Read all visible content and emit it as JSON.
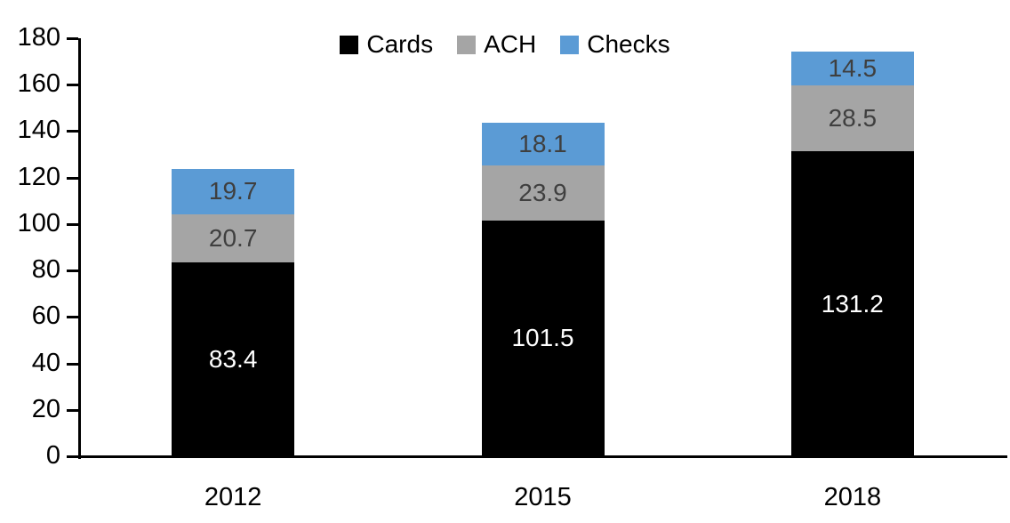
{
  "chart_data": {
    "type": "bar",
    "stacked": true,
    "title": "",
    "categories": [
      "2012",
      "2015",
      "2018"
    ],
    "series": [
      {
        "name": "Cards",
        "color": "#000000",
        "label_color": "#FFFFFF",
        "values": [
          83.4,
          101.5,
          131.2
        ]
      },
      {
        "name": "ACH",
        "color": "#A5A5A5",
        "label_color": "#3F3F3F",
        "values": [
          20.7,
          23.9,
          28.5
        ]
      },
      {
        "name": "Checks",
        "color": "#5B9BD5",
        "label_color": "#3F3F3F",
        "values": [
          19.7,
          18.1,
          14.5
        ]
      }
    ],
    "totals": [
      123.8,
      143.5,
      174.2
    ],
    "ylim": [
      0,
      180
    ],
    "ytick_step": 20,
    "ytick_labels": [
      "0",
      "20",
      "40",
      "60",
      "80",
      "100",
      "120",
      "140",
      "160",
      "180"
    ],
    "legend": {
      "position": "top",
      "entries": [
        "Cards",
        "ACH",
        "Checks"
      ]
    },
    "grid": false,
    "axis_color": "#000000",
    "background": "#FFFFFF"
  }
}
